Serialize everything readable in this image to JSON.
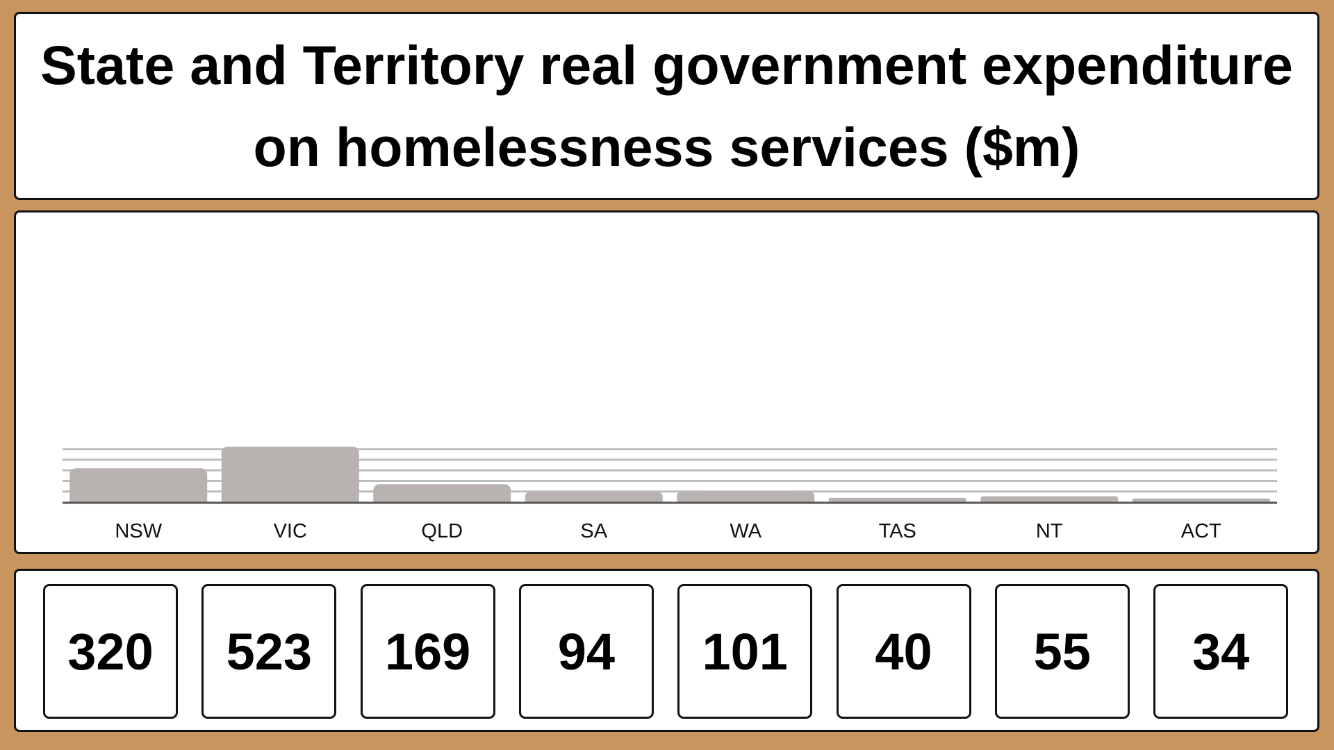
{
  "colors": {
    "background": "#c8955f",
    "panel": "#ffffff",
    "bar": "#b8b2b0",
    "grid": "#bdbdbd",
    "axis": "#555555"
  },
  "chart_data": {
    "type": "bar",
    "title": "State and Territory real government expenditure on homelessness services ($m)",
    "categories": [
      "NSW",
      "VIC",
      "QLD",
      "SA",
      "WA",
      "TAS",
      "NT",
      "ACT"
    ],
    "values": [
      320,
      523,
      169,
      94,
      101,
      40,
      55,
      34
    ],
    "value_labels": [
      "320",
      "523",
      "169",
      "94",
      "101",
      "40",
      "55",
      "34"
    ],
    "xlabel": "",
    "ylabel": "",
    "ylim": [
      0,
      500
    ],
    "grid": true,
    "legend": "none"
  }
}
